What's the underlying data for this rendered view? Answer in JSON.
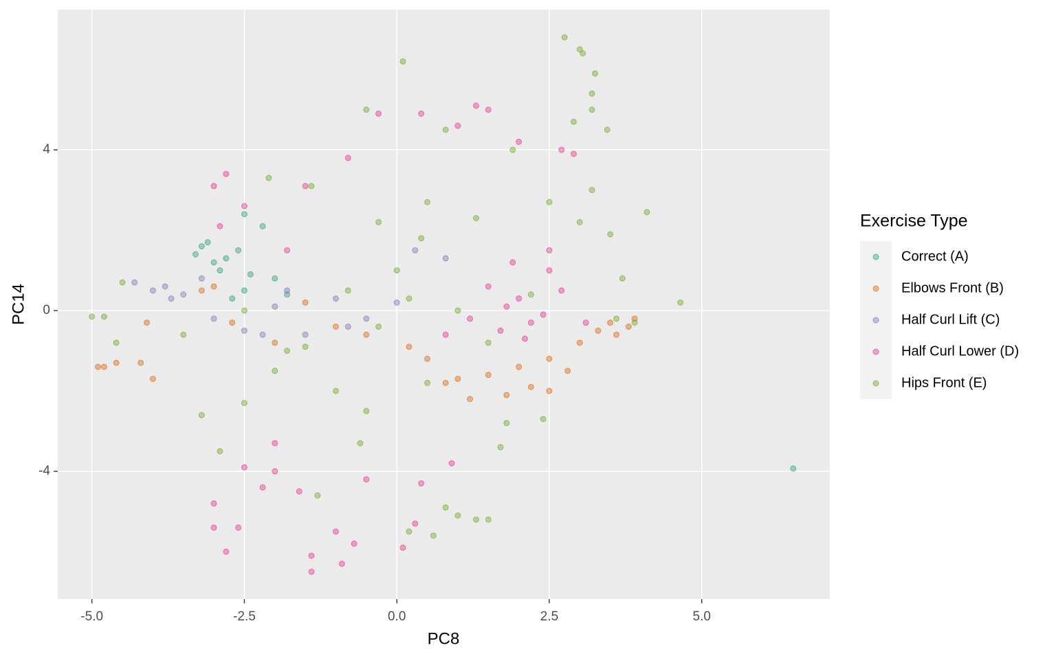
{
  "chart_data": {
    "type": "scatter",
    "x_label": "PC8",
    "y_label": "PC14",
    "legend_title": "Exercise Type",
    "legend_position": "right",
    "grid": true,
    "xlim": [
      -5.56,
      7.1
    ],
    "ylim": [
      -7.18,
      7.49
    ],
    "xticks": [
      {
        "value": -5,
        "label": "-5.0"
      },
      -2.5,
      {
        "value": 0,
        "label": "0.0"
      },
      2.5,
      {
        "value": 5,
        "label": "5.0"
      }
    ],
    "yticks": [
      -4,
      0,
      4
    ],
    "series": [
      {
        "name": "Correct (A)",
        "color": "#1b9e77",
        "x": [
          -2.8,
          -3.3,
          -3.2,
          -2.9,
          -2.6,
          -2.5,
          -2.5,
          -2.0,
          -2.2,
          -3.0,
          -2.7,
          -1.8,
          -2.4,
          -3.1,
          6.5
        ],
        "values": [
          1.3,
          1.4,
          1.6,
          1.0,
          1.5,
          0.5,
          2.4,
          0.8,
          2.1,
          1.2,
          0.3,
          0.4,
          0.9,
          1.7,
          -3.93
        ]
      },
      {
        "name": "Elbows Front (B)",
        "color": "#d95f02",
        "x": [
          -4.9,
          -4.8,
          -4.6,
          -4.2,
          -4.0,
          -4.1,
          -3.2,
          -2.0,
          1.0,
          1.5,
          2.0,
          2.5,
          3.0,
          3.5,
          3.8,
          3.9,
          2.5,
          1.8,
          0.8,
          0.5,
          -1.5,
          -0.5,
          0.2,
          2.8,
          3.3,
          1.2,
          2.2,
          -3.0,
          -2.7,
          -1.0,
          3.6
        ],
        "values": [
          -1.4,
          -1.4,
          -1.3,
          -1.3,
          -1.7,
          -0.3,
          0.5,
          -0.8,
          -1.7,
          -1.6,
          -1.4,
          -1.2,
          -0.8,
          -0.3,
          -0.4,
          -0.2,
          -2.0,
          -2.1,
          -1.8,
          -1.2,
          0.2,
          -0.6,
          -0.9,
          -1.5,
          -0.5,
          -2.2,
          -1.9,
          0.6,
          -0.3,
          -0.4,
          -0.6
        ]
      },
      {
        "name": "Half Curl Lift (C)",
        "color": "#7570b3",
        "x": [
          -4.3,
          -4.0,
          -3.8,
          -3.5,
          -3.2,
          -3.0,
          -2.5,
          -2.0,
          -1.5,
          -1.0,
          -0.5,
          0.3,
          0.8,
          -2.2,
          -1.8,
          -0.8,
          0.0,
          -3.7
        ],
        "values": [
          0.7,
          0.5,
          0.6,
          0.4,
          0.8,
          -0.2,
          -0.5,
          0.1,
          -0.6,
          0.3,
          -0.2,
          1.5,
          1.3,
          -0.6,
          0.5,
          -0.4,
          0.2,
          0.3
        ]
      },
      {
        "name": "Half Curl Lower (D)",
        "color": "#e7298a",
        "x": [
          -3.0,
          -2.8,
          -2.5,
          -2.0,
          -2.2,
          -2.0,
          -3.0,
          -2.8,
          -2.6,
          -1.4,
          -1.4,
          -0.9,
          -1.0,
          -0.7,
          -0.5,
          -0.3,
          0.4,
          1.3,
          1.5,
          1.0,
          2.7,
          2.9,
          2.0,
          2.5,
          2.0,
          1.5,
          2.2,
          1.7,
          2.7,
          2.4,
          1.8,
          1.2,
          3.1,
          0.8,
          0.9,
          0.3,
          0.1,
          -0.8,
          -1.5,
          -2.9,
          -1.8,
          0.4,
          2.5,
          1.9,
          2.1,
          -3.0,
          -2.5,
          -1.6
        ],
        "values": [
          3.1,
          3.4,
          2.6,
          -4.0,
          -4.4,
          -3.3,
          -5.4,
          -6.0,
          -5.4,
          -6.1,
          -6.5,
          -6.3,
          -5.5,
          -5.8,
          -4.2,
          4.9,
          4.9,
          5.1,
          5.0,
          4.6,
          4.0,
          3.9,
          4.2,
          1.0,
          0.3,
          0.6,
          -0.3,
          -0.5,
          0.5,
          -0.1,
          0.1,
          -0.2,
          -0.3,
          -0.6,
          -3.8,
          -5.3,
          -5.9,
          3.8,
          3.1,
          2.1,
          1.5,
          -4.3,
          1.5,
          1.2,
          -0.7,
          -4.8,
          -3.9,
          -4.5
        ]
      },
      {
        "name": "Hips Front (E)",
        "color": "#66a61e",
        "x": [
          0.1,
          2.75,
          3.0,
          3.05,
          3.25,
          3.2,
          3.2,
          2.9,
          3.45,
          -0.5,
          4.65,
          4.1,
          -5.0,
          -4.8,
          -4.5,
          -4.6,
          -2.9,
          -3.2,
          -2.5,
          -1.3,
          0.6,
          0.2,
          1.5,
          1.3,
          1.0,
          0.8,
          1.7,
          2.4,
          3.6,
          3.9,
          3.7,
          3.5,
          -2.1,
          -1.4,
          -0.3,
          0.5,
          1.3,
          2.5,
          3.2,
          3.0,
          1.0,
          0.2,
          -0.3,
          -0.8,
          -1.5,
          -2.0,
          -3.5,
          0.5,
          -0.5,
          0.0,
          1.5,
          2.2,
          -1.0,
          -2.5,
          1.8,
          -0.6,
          0.4,
          -1.8,
          0.8,
          1.9
        ],
        "values": [
          6.2,
          6.8,
          6.5,
          6.4,
          5.9,
          5.4,
          5.0,
          4.7,
          4.5,
          5.0,
          0.2,
          2.45,
          -0.15,
          -0.15,
          0.7,
          -0.8,
          -3.5,
          -2.6,
          -2.3,
          -4.6,
          -5.6,
          -5.5,
          -5.2,
          -5.2,
          -5.1,
          -4.9,
          -3.4,
          -2.7,
          -0.2,
          -0.3,
          0.8,
          1.9,
          3.3,
          3.1,
          2.2,
          2.7,
          2.3,
          2.7,
          3.0,
          2.2,
          0.0,
          0.3,
          -0.4,
          0.5,
          -0.9,
          -1.5,
          -0.6,
          -1.8,
          -2.5,
          1.0,
          -0.8,
          0.4,
          -2.0,
          0.0,
          -2.8,
          -3.3,
          1.8,
          -1.0,
          4.5,
          4.0
        ]
      }
    ]
  }
}
